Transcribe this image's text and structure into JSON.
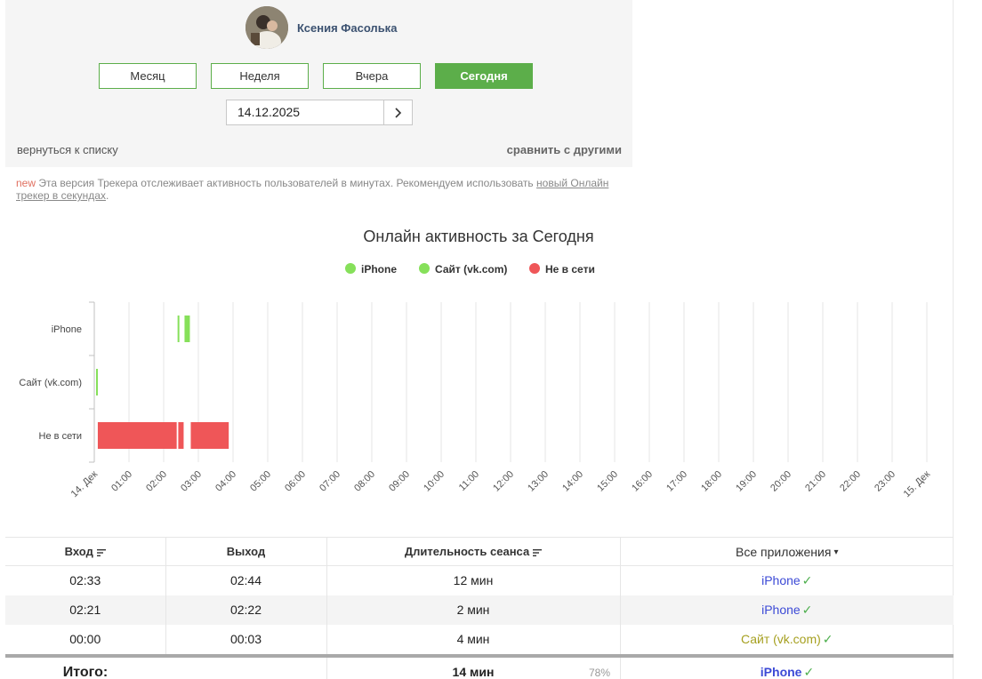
{
  "user": {
    "name": "Ксения Фасолька"
  },
  "periods": [
    {
      "label": "Месяц",
      "active": false
    },
    {
      "label": "Неделя",
      "active": false
    },
    {
      "label": "Вчера",
      "active": false
    },
    {
      "label": "Сегодня",
      "active": true
    }
  ],
  "date": {
    "value": "14.12.2025"
  },
  "links": {
    "back": "вернуться к списку",
    "compare": "сравнить с другими"
  },
  "notice": {
    "badge": "new",
    "text": "Эта версия Трекера отслеживает активность пользователей в минутах. Рекомендуем использовать",
    "link_text": "новый Онлайн трекер в секундах",
    "suffix": "."
  },
  "colors": {
    "accent": "#5cae4a",
    "online": "#86e05a",
    "offline": "#ef5658"
  },
  "chart_data": {
    "type": "timeline",
    "title": "Онлайн активность за Сегодня",
    "legend": [
      "iPhone",
      "Сайт (vk.com)",
      "Не в сети"
    ],
    "legend_position": "top-center",
    "categories": [
      "iPhone",
      "Сайт (vk.com)",
      "Не в сети"
    ],
    "x_ticks": [
      "14. Дек",
      "01:00",
      "02:00",
      "03:00",
      "04:00",
      "05:00",
      "06:00",
      "07:00",
      "08:00",
      "09:00",
      "10:00",
      "11:00",
      "12:00",
      "13:00",
      "14:00",
      "15:00",
      "16:00",
      "17:00",
      "18:00",
      "19:00",
      "20:00",
      "21:00",
      "22:00",
      "23:00",
      "15. Дек"
    ],
    "x_range_hours": [
      0,
      24
    ],
    "grid": true,
    "series": [
      {
        "name": "iPhone",
        "intervals": [
          [
            2.35,
            2.37
          ],
          [
            2.55,
            2.73
          ]
        ]
      },
      {
        "name": "Сайт (vk.com)",
        "intervals": [
          [
            0.0,
            0.05
          ]
        ]
      },
      {
        "name": "Не в сети",
        "intervals": [
          [
            0.05,
            2.35
          ],
          [
            2.37,
            2.55
          ],
          [
            2.73,
            3.85
          ]
        ]
      }
    ]
  },
  "table": {
    "headers": {
      "login": "Вход",
      "logout": "Выход",
      "duration": "Длительность сеанса",
      "apps": "Все приложения"
    },
    "rows": [
      {
        "login": "02:33",
        "logout": "02:44",
        "duration": "12 мин",
        "app": "iPhone",
        "app_type": "iphone"
      },
      {
        "login": "02:21",
        "logout": "02:22",
        "duration": "2 мин",
        "app": "iPhone",
        "app_type": "iphone"
      },
      {
        "login": "00:00",
        "logout": "00:03",
        "duration": "4 мин",
        "app": "Сайт (vk.com)",
        "app_type": "site"
      }
    ],
    "total": {
      "label": "Итого:",
      "duration": "14 мин",
      "percent": "78%",
      "app": "iPhone"
    }
  }
}
